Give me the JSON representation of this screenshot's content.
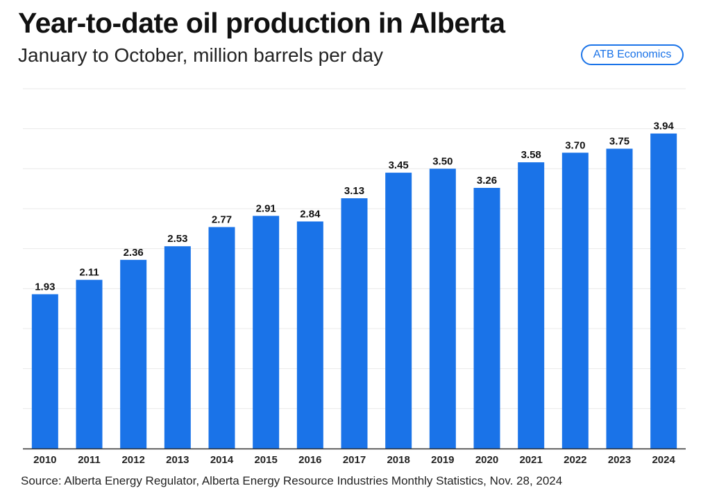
{
  "brand": {
    "badge_label": "ATB Economics",
    "accent_color": "#1a73e8"
  },
  "source_text": "Source: Alberta Energy Regulator, Alberta Energy Resource Industries Monthly Statistics, Nov. 28, 2024",
  "chart_data": {
    "type": "bar",
    "title": "Year-to-date oil production in Alberta",
    "subtitle": "January to October, million barrels per day",
    "xlabel": "",
    "ylabel": "",
    "categories": [
      "2010",
      "2011",
      "2012",
      "2013",
      "2014",
      "2015",
      "2016",
      "2017",
      "2018",
      "2019",
      "2020",
      "2021",
      "2022",
      "2023",
      "2024"
    ],
    "values": [
      1.93,
      2.11,
      2.36,
      2.53,
      2.77,
      2.91,
      2.84,
      3.13,
      3.45,
      3.5,
      3.26,
      3.58,
      3.7,
      3.75,
      3.94
    ],
    "value_labels": [
      "1.93",
      "2.11",
      "2.36",
      "2.53",
      "2.77",
      "2.91",
      "2.84",
      "3.13",
      "3.45",
      "3.50",
      "3.26",
      "3.58",
      "3.70",
      "3.75",
      "3.94"
    ],
    "ylim": [
      0,
      4.5
    ],
    "grid": true,
    "gridline_step": 0.5,
    "bar_color": "#1a73e8",
    "legend": "none"
  }
}
